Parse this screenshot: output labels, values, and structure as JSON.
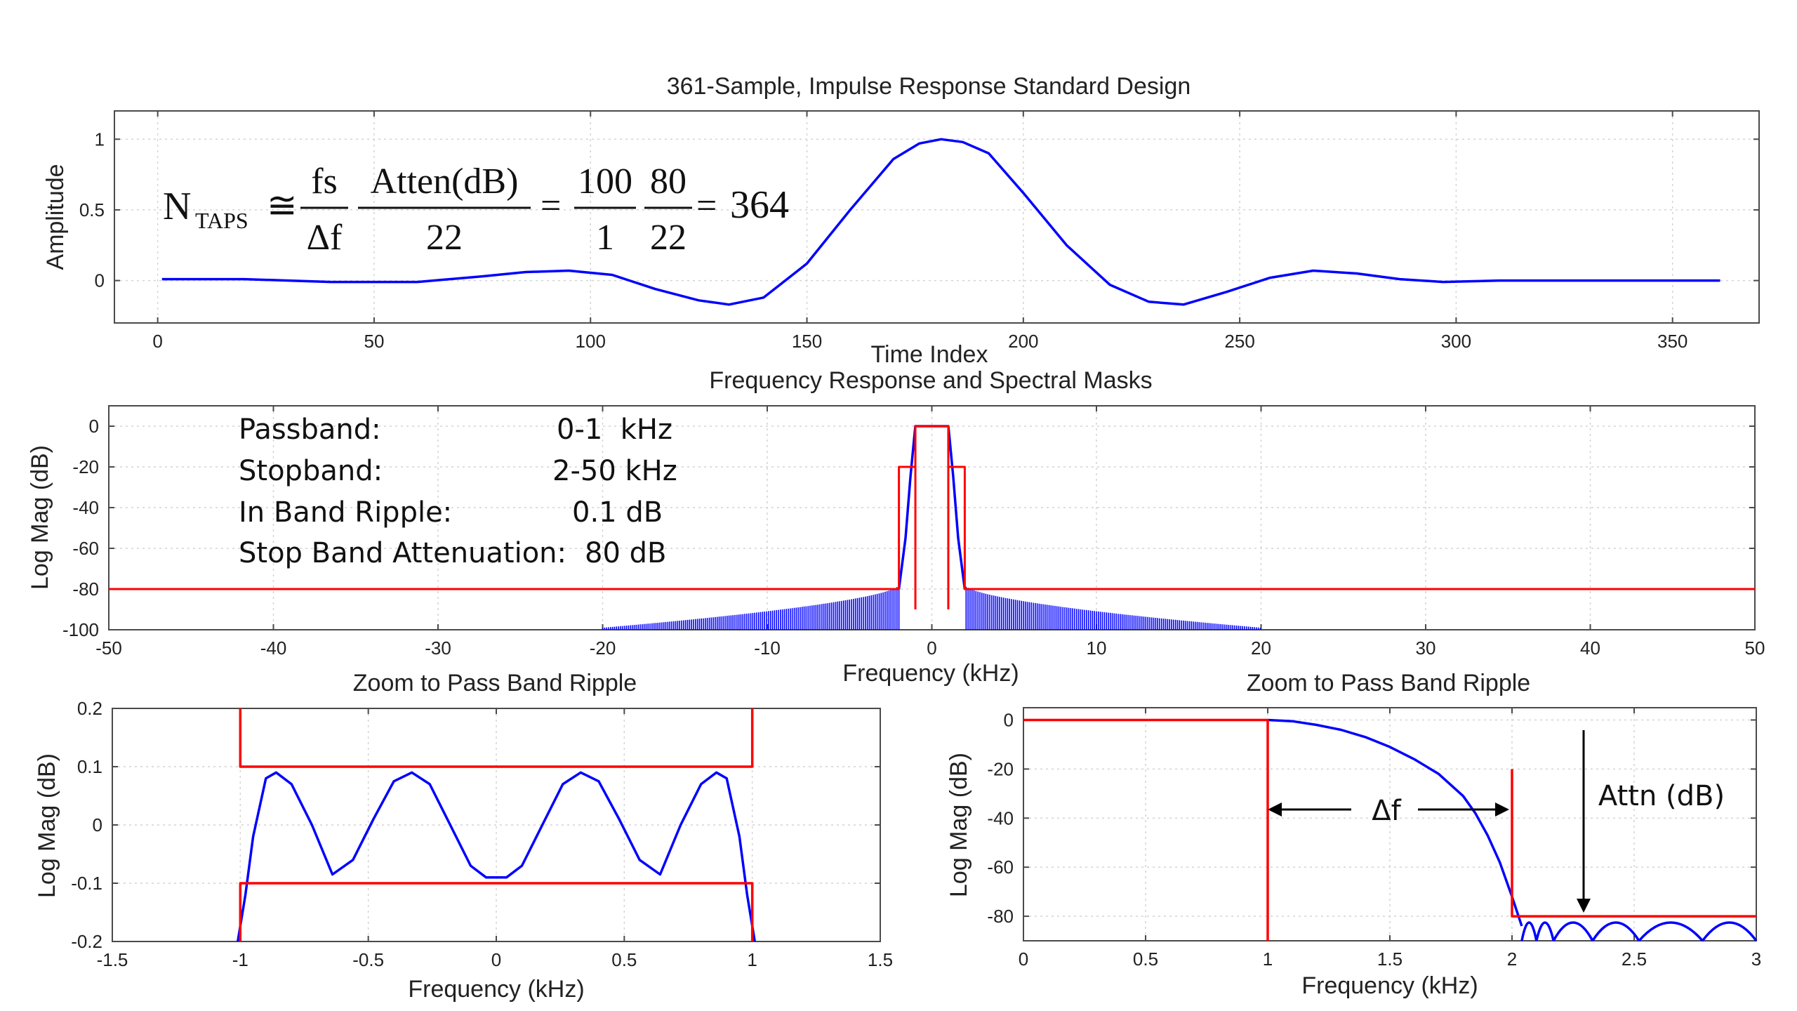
{
  "chart_data": [
    {
      "id": "p1",
      "type": "line",
      "title": "361-Sample, Impulse Response Standard Design",
      "xlabel": "Time Index",
      "ylabel": "Amplitude",
      "xlim": [
        -10,
        370
      ],
      "ylim": [
        -0.3,
        1.2
      ],
      "xticks": [
        0,
        50,
        100,
        150,
        200,
        250,
        300,
        350
      ],
      "yticks": [
        0,
        0.5,
        1
      ],
      "ytick_labels": [
        "0",
        "0.5",
        "1"
      ],
      "grid": true,
      "series": [
        {
          "color": "#0000ff",
          "x": [
            1,
            20,
            40,
            60,
            75,
            85,
            95,
            105,
            115,
            125,
            132,
            140,
            150,
            160,
            170,
            176,
            181,
            186,
            192,
            200,
            210,
            220,
            229,
            237,
            247,
            257,
            267,
            277,
            287,
            297,
            310,
            330,
            361
          ],
          "y": [
            0.01,
            0.01,
            -0.01,
            -0.01,
            0.03,
            0.06,
            0.07,
            0.04,
            -0.06,
            -0.14,
            -0.17,
            -0.12,
            0.12,
            0.5,
            0.86,
            0.97,
            1.0,
            0.98,
            0.9,
            0.62,
            0.25,
            -0.03,
            -0.15,
            -0.17,
            -0.08,
            0.02,
            0.07,
            0.05,
            0.01,
            -0.01,
            0.0,
            0.0,
            0.0
          ]
        }
      ],
      "annotations": {
        "lhs": "N",
        "lhs_sub": "TAPS",
        "approx": "≅",
        "f1_num": "fs",
        "f1_den": "Δf",
        "f2_num": "Atten(dB)",
        "f2_den": "22",
        "eq1": "=",
        "f3_num": "100",
        "f3_den": "1",
        "f4_num": "80",
        "f4_den": "22",
        "eq2": "=",
        "result": "364"
      }
    },
    {
      "id": "p2",
      "type": "line",
      "title": "Frequency Response and Spectral Masks",
      "xlabel": "Frequency (kHz)",
      "ylabel": "Log Mag (dB)",
      "xlim": [
        -50,
        50
      ],
      "ylim": [
        -100,
        10
      ],
      "xticks": [
        -50,
        -40,
        -30,
        -20,
        -10,
        0,
        10,
        20,
        30,
        40,
        50
      ],
      "yticks": [
        0,
        -20,
        -40,
        -60,
        -80,
        -100
      ],
      "grid": true,
      "series": [
        {
          "color": "#0000ff",
          "x": [
            -2.0,
            -1.6,
            -1.3,
            -1.1,
            -1.0,
            1.0,
            1.1,
            1.3,
            1.6,
            2.0
          ],
          "y": [
            -80,
            -55,
            -25,
            -8,
            0,
            0,
            -8,
            -25,
            -55,
            -80
          ]
        },
        {
          "color": "#ff0000",
          "x": [
            -50,
            -2,
            -2,
            -1,
            -1,
            1,
            1,
            2,
            2,
            50
          ],
          "y": [
            -80,
            -80,
            -20,
            -20,
            0,
            0,
            -20,
            -20,
            -80,
            -80
          ]
        }
      ],
      "sidelobes": {
        "color": "#0000ff",
        "x_extent": [
          -20,
          20
        ],
        "floor_db": -100,
        "peak_near_db": -78,
        "peak_far_db": -99
      },
      "inner_mask": {
        "color": "#ff0000",
        "x": [
          -1,
          1
        ],
        "y": [
          0,
          -90
        ]
      },
      "annotations": [
        {
          "label": "Passband:",
          "value": "0-1  kHz"
        },
        {
          "label": "Stopband:",
          "value": "2-50 kHz"
        },
        {
          "label": "In Band Ripple:",
          "value": "0.1 dB"
        },
        {
          "label": "Stop Band Attenuation:",
          "value": "80 dB"
        }
      ]
    },
    {
      "id": "p3",
      "type": "line",
      "title": "Zoom to Pass Band Ripple",
      "xlabel": "Frequency (kHz)",
      "ylabel": "Log Mag (dB)",
      "xlim": [
        -1.5,
        1.5
      ],
      "ylim": [
        -0.2,
        0.2
      ],
      "xticks": [
        -1.5,
        -1,
        -0.5,
        0,
        0.5,
        1,
        1.5
      ],
      "xtick_labels": [
        "-1.5",
        "-1",
        "-0.5",
        "0",
        "0.5",
        "1",
        "1.5"
      ],
      "yticks": [
        0.2,
        0.1,
        0,
        -0.1,
        -0.2
      ],
      "ytick_labels": [
        "0.2",
        "0.1",
        "0",
        "-0.1",
        "-0.2"
      ],
      "grid": true,
      "series": [
        {
          "color": "#0000ff",
          "x": [
            -1.01,
            -0.98,
            -0.95,
            -0.9,
            -0.86,
            -0.8,
            -0.72,
            -0.64,
            -0.56,
            -0.48,
            -0.4,
            -0.33,
            -0.26,
            -0.18,
            -0.1,
            -0.04,
            0,
            0.04,
            0.1,
            0.18,
            0.26,
            0.33,
            0.4,
            0.48,
            0.56,
            0.64,
            0.72,
            0.8,
            0.86,
            0.9,
            0.95,
            0.98,
            1.01
          ],
          "y": [
            -0.2,
            -0.12,
            -0.02,
            0.08,
            0.09,
            0.07,
            0.0,
            -0.085,
            -0.06,
            0.01,
            0.075,
            0.09,
            0.07,
            0.0,
            -0.07,
            -0.09,
            -0.09,
            -0.09,
            -0.07,
            0.0,
            0.07,
            0.09,
            0.075,
            0.01,
            -0.06,
            -0.085,
            0.0,
            0.07,
            0.09,
            0.08,
            -0.02,
            -0.12,
            -0.2
          ]
        },
        {
          "color": "#ff0000",
          "x": [
            -1,
            -1,
            1,
            1
          ],
          "y": [
            0.2,
            0.1,
            0.1,
            0.2
          ]
        },
        {
          "color": "#ff0000",
          "x": [
            -1,
            -1,
            1,
            1
          ],
          "y": [
            -0.2,
            -0.1,
            -0.1,
            -0.2
          ]
        }
      ]
    },
    {
      "id": "p4",
      "type": "line",
      "title": "Zoom to Pass Band Ripple",
      "xlabel": "Frequency (kHz)",
      "ylabel": "Log Mag (dB)",
      "xlim": [
        0,
        3
      ],
      "ylim": [
        -90,
        5
      ],
      "xticks": [
        0,
        0.5,
        1,
        1.5,
        2,
        2.5,
        3
      ],
      "xtick_labels": [
        "0",
        "0.5",
        "1",
        "1.5",
        "2",
        "2.5",
        "3"
      ],
      "yticks": [
        0,
        -20,
        -40,
        -60,
        -80
      ],
      "grid": true,
      "series": [
        {
          "color": "#0000ff",
          "x": [
            1.0,
            1.1,
            1.2,
            1.3,
            1.4,
            1.5,
            1.6,
            1.7,
            1.8,
            1.85,
            1.9,
            1.95,
            2.0,
            2.04
          ],
          "y": [
            0,
            -0.5,
            -2,
            -4,
            -7,
            -11,
            -16,
            -22,
            -31,
            -38,
            -47,
            -58,
            -72,
            -84
          ]
        },
        {
          "color": "#ff0000",
          "x": [
            0,
            1,
            1,
            1,
            1
          ],
          "y": [
            0,
            0,
            0,
            0,
            -90
          ]
        },
        {
          "color": "#ff0000",
          "x": [
            2,
            2,
            3
          ],
          "y": [
            -20,
            -80,
            -80
          ]
        }
      ],
      "sidelobes": {
        "color": "#0000ff",
        "x": [
          2.04,
          2.1,
          2.17,
          2.33,
          2.52,
          2.78,
          3.0
        ],
        "peak_db": -82,
        "floor_db": -90
      },
      "annotations": {
        "delta": "Δf",
        "attn": "Attn (dB)"
      }
    }
  ]
}
